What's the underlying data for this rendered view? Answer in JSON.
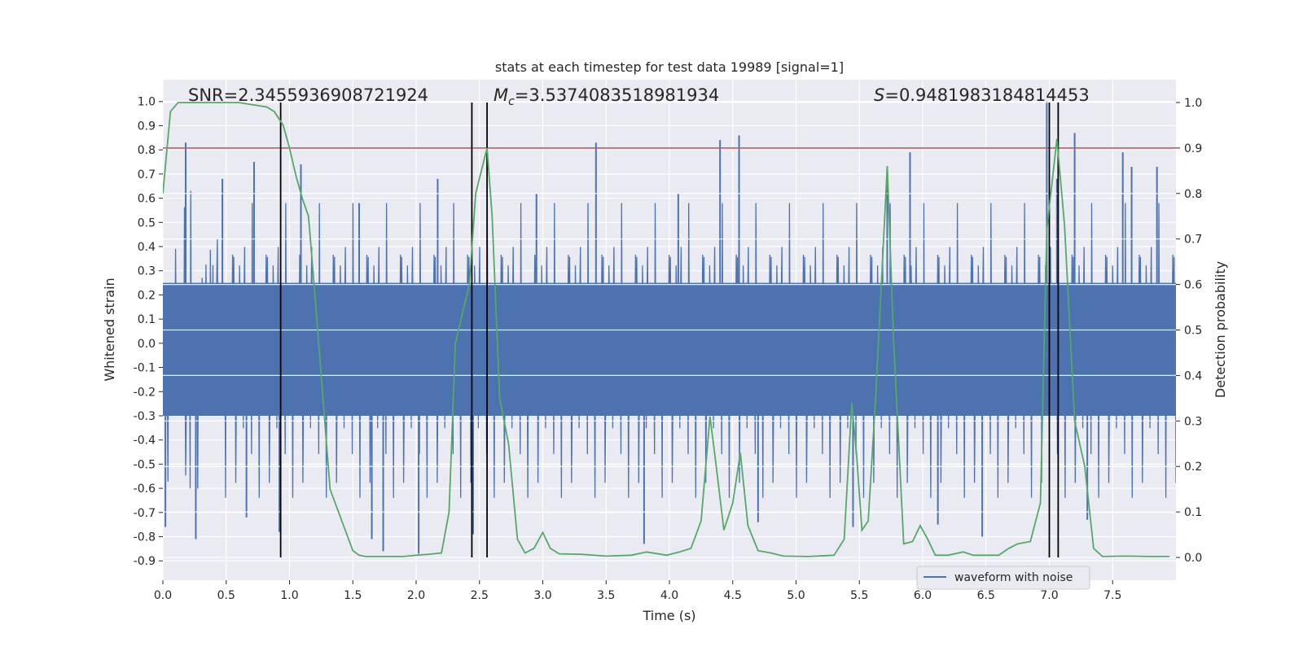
{
  "chart_data": {
    "type": "line",
    "title": "stats at each timestep for test data 19989 [signal=1]",
    "xlabel": "Time (s)",
    "ylabel": "Whitened strain",
    "y2label": "Detection probability",
    "xlim": [
      0,
      8
    ],
    "ylim": [
      -0.98,
      1.09
    ],
    "y2lim": [
      -0.05,
      1.05
    ],
    "xticks": [
      0.0,
      0.5,
      1.0,
      1.5,
      2.0,
      2.5,
      3.0,
      3.5,
      4.0,
      4.5,
      5.0,
      5.5,
      6.0,
      6.5,
      7.0,
      7.5
    ],
    "xtick_labels": [
      "0.0",
      "0.5",
      "1.0",
      "1.5",
      "2.0",
      "2.5",
      "3.0",
      "3.5",
      "4.0",
      "4.5",
      "5.0",
      "5.5",
      "6.0",
      "6.5",
      "7.0",
      "7.5"
    ],
    "yticks": [
      1.0,
      0.9,
      0.8,
      0.7,
      0.6,
      0.5,
      0.4,
      0.3,
      0.2,
      0.1,
      0.0,
      -0.1,
      -0.2,
      -0.3,
      -0.4,
      -0.5,
      -0.6,
      -0.7,
      -0.8,
      -0.9
    ],
    "ytick_labels": [
      "1.0",
      "0.9",
      "0.8",
      "0.7",
      "0.6",
      "0.5",
      "0.4",
      "0.3",
      "0.2",
      "0.1",
      "0.0",
      "-0.1",
      "-0.2",
      "-0.3",
      "-0.4",
      "-0.5",
      "-0.6",
      "-0.7",
      "-0.8",
      "-0.9"
    ],
    "y2ticks": [
      1.0,
      0.9,
      0.8,
      0.7,
      0.6,
      0.5,
      0.4,
      0.3,
      0.2,
      0.1,
      0.0
    ],
    "y2tick_labels": [
      "1.0",
      "0.9",
      "0.8",
      "0.7",
      "0.6",
      "0.5",
      "0.4",
      "0.3",
      "0.2",
      "0.1",
      "0.0"
    ],
    "grid": true,
    "legend": {
      "position": "lower-right",
      "entries": [
        "waveform with noise"
      ]
    },
    "annotations": {
      "snr": "SNR=2.3455936908721924",
      "mc_symbol": "M",
      "mc_sub": "c",
      "mc_value": "=3.5374083518981934",
      "s_symbol": "S",
      "s_value": "=0.9481983184814453"
    },
    "colors": {
      "waveform": "#4c72b0",
      "probability": "#55a868",
      "threshold": "#c44e52",
      "markers": "#000000",
      "axes_bg": "#eaeaf2",
      "grid": "#ffffff"
    },
    "threshold_probability": 0.9,
    "vertical_markers_x": [
      0.93,
      2.44,
      2.56,
      7.0,
      7.07
    ],
    "waveform_envelope": {
      "typical_range": [
        -0.45,
        0.45
      ],
      "peak_max": 1.0,
      "peak_min": -0.87
    },
    "series": [
      {
        "name": "waveform with noise",
        "axis": "left",
        "style": "noise",
        "peaks": [
          {
            "x": 0.02,
            "y": -0.76
          },
          {
            "x": 0.18,
            "y": 0.83
          },
          {
            "x": 0.26,
            "y": -0.81
          },
          {
            "x": 0.47,
            "y": 0.68
          },
          {
            "x": 0.66,
            "y": -0.72
          },
          {
            "x": 0.72,
            "y": 0.75
          },
          {
            "x": 0.92,
            "y": -0.78
          },
          {
            "x": 1.09,
            "y": 0.74
          },
          {
            "x": 1.55,
            "y": 0.58
          },
          {
            "x": 1.65,
            "y": -0.81
          },
          {
            "x": 1.74,
            "y": -0.86
          },
          {
            "x": 2.02,
            "y": -0.87
          },
          {
            "x": 2.17,
            "y": 0.68
          },
          {
            "x": 2.45,
            "y": -0.79
          },
          {
            "x": 2.95,
            "y": 0.62
          },
          {
            "x": 3.42,
            "y": 0.83
          },
          {
            "x": 3.8,
            "y": -0.83
          },
          {
            "x": 4.07,
            "y": 0.62
          },
          {
            "x": 4.4,
            "y": 0.84
          },
          {
            "x": 4.55,
            "y": 0.86
          },
          {
            "x": 4.7,
            "y": -0.74
          },
          {
            "x": 5.45,
            "y": -0.76
          },
          {
            "x": 5.72,
            "y": 0.73
          },
          {
            "x": 5.9,
            "y": 0.79
          },
          {
            "x": 6.12,
            "y": -0.75
          },
          {
            "x": 6.47,
            "y": -0.8
          },
          {
            "x": 6.98,
            "y": 1.0
          },
          {
            "x": 7.06,
            "y": 0.68
          },
          {
            "x": 7.2,
            "y": 0.87
          },
          {
            "x": 7.3,
            "y": -0.73
          },
          {
            "x": 7.58,
            "y": 0.79
          },
          {
            "x": 7.65,
            "y": 0.73
          },
          {
            "x": 7.85,
            "y": 0.73
          }
        ]
      },
      {
        "name": "",
        "axis": "right",
        "points": [
          [
            0.0,
            0.8
          ],
          [
            0.06,
            0.98
          ],
          [
            0.12,
            1.0
          ],
          [
            0.3,
            1.0
          ],
          [
            0.6,
            1.0
          ],
          [
            0.82,
            0.99
          ],
          [
            0.88,
            0.98
          ],
          [
            0.95,
            0.95
          ],
          [
            1.0,
            0.9
          ],
          [
            1.05,
            0.84
          ],
          [
            1.1,
            0.79
          ],
          [
            1.15,
            0.75
          ],
          [
            1.2,
            0.58
          ],
          [
            1.25,
            0.4
          ],
          [
            1.32,
            0.15
          ],
          [
            1.4,
            0.09
          ],
          [
            1.5,
            0.015
          ],
          [
            1.55,
            0.005
          ],
          [
            1.6,
            0.002
          ],
          [
            1.9,
            0.002
          ],
          [
            2.0,
            0.005
          ],
          [
            2.1,
            0.007
          ],
          [
            2.2,
            0.01
          ],
          [
            2.26,
            0.1
          ],
          [
            2.31,
            0.47
          ],
          [
            2.36,
            0.53
          ],
          [
            2.42,
            0.6
          ],
          [
            2.47,
            0.8
          ],
          [
            2.56,
            0.9
          ],
          [
            2.6,
            0.75
          ],
          [
            2.66,
            0.35
          ],
          [
            2.73,
            0.25
          ],
          [
            2.8,
            0.04
          ],
          [
            2.86,
            0.01
          ],
          [
            2.93,
            0.02
          ],
          [
            3.0,
            0.055
          ],
          [
            3.06,
            0.02
          ],
          [
            3.13,
            0.008
          ],
          [
            3.3,
            0.007
          ],
          [
            3.5,
            0.003
          ],
          [
            3.7,
            0.005
          ],
          [
            3.82,
            0.012
          ],
          [
            3.98,
            0.005
          ],
          [
            4.08,
            0.012
          ],
          [
            4.17,
            0.02
          ],
          [
            4.25,
            0.08
          ],
          [
            4.32,
            0.31
          ],
          [
            4.37,
            0.2
          ],
          [
            4.43,
            0.06
          ],
          [
            4.5,
            0.12
          ],
          [
            4.56,
            0.23
          ],
          [
            4.62,
            0.07
          ],
          [
            4.7,
            0.015
          ],
          [
            4.8,
            0.01
          ],
          [
            4.9,
            0.003
          ],
          [
            5.1,
            0.002
          ],
          [
            5.3,
            0.005
          ],
          [
            5.38,
            0.04
          ],
          [
            5.44,
            0.34
          ],
          [
            5.48,
            0.22
          ],
          [
            5.52,
            0.06
          ],
          [
            5.57,
            0.08
          ],
          [
            5.63,
            0.36
          ],
          [
            5.72,
            0.86
          ],
          [
            5.77,
            0.48
          ],
          [
            5.85,
            0.03
          ],
          [
            5.92,
            0.035
          ],
          [
            5.98,
            0.07
          ],
          [
            6.04,
            0.04
          ],
          [
            6.1,
            0.005
          ],
          [
            6.2,
            0.005
          ],
          [
            6.32,
            0.012
          ],
          [
            6.4,
            0.005
          ],
          [
            6.6,
            0.005
          ],
          [
            6.68,
            0.02
          ],
          [
            6.75,
            0.03
          ],
          [
            6.85,
            0.035
          ],
          [
            6.93,
            0.12
          ],
          [
            6.98,
            0.72
          ],
          [
            7.06,
            0.92
          ],
          [
            7.12,
            0.73
          ],
          [
            7.2,
            0.3
          ],
          [
            7.28,
            0.2
          ],
          [
            7.35,
            0.02
          ],
          [
            7.42,
            0.002
          ],
          [
            7.6,
            0.003
          ],
          [
            7.8,
            0.002
          ],
          [
            7.95,
            0.002
          ]
        ]
      }
    ]
  }
}
